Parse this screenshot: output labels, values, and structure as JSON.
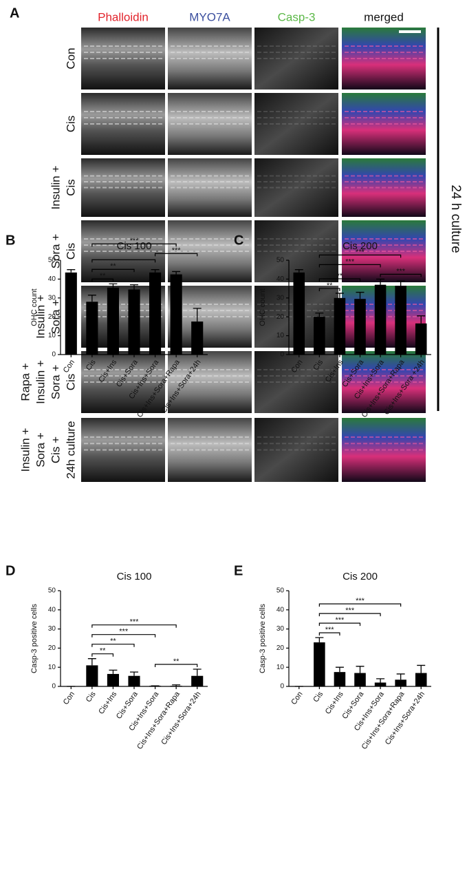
{
  "panel_a": {
    "label": "A",
    "columns": [
      {
        "name": "Phalloidin",
        "color": "#e2232b"
      },
      {
        "name": "MYO7A",
        "color": "#3b4f9e"
      },
      {
        "name": "Casp-3",
        "color": "#5bb847"
      },
      {
        "name": "merged",
        "color": "#111111"
      }
    ],
    "rows": [
      [
        "Con"
      ],
      [
        "Cis"
      ],
      [
        "Insulin +",
        "Cis"
      ],
      [
        "Sora +",
        "Cis"
      ],
      [
        "Insulin +",
        "Sora +",
        "Cis"
      ],
      [
        "Rapa +",
        "Insulin +",
        "Sora +",
        "Cis"
      ],
      [
        "Insulin +",
        "Sora +",
        "Cis +",
        "24h culture"
      ]
    ],
    "side_label": "24 h culture"
  },
  "chart_data": [
    {
      "type": "bar",
      "label": "B",
      "title": "Cis 100",
      "y_label": "OHC count",
      "categories": [
        "Con",
        "Cis",
        "Cis+Ins",
        "Cis+Sora",
        "Cis+Ins+Sora",
        "Cis+Ins+Sora+Rapa",
        "Cis+Ins+Sora+24h"
      ],
      "values": [
        43.5,
        28,
        35.5,
        34.5,
        43.5,
        42.5,
        17.5
      ],
      "errors": [
        1.5,
        3.5,
        2,
        2.5,
        1.5,
        1.5,
        7
      ],
      "color": "#000000",
      "ylim": [
        0,
        50
      ],
      "yticks": [
        0,
        10,
        20,
        30,
        40,
        50
      ],
      "brackets": [
        {
          "pair": [
            "Cis",
            "Cis+Ins"
          ],
          "label": "**"
        },
        {
          "pair": [
            "Cis",
            "Cis+Sora"
          ],
          "label": "**"
        },
        {
          "pair": [
            "Cis",
            "Cis+Ins+Sora"
          ]
        },
        {
          "pair": [
            "Cis+Ins+Sora",
            "Cis+Ins+Sora+24h"
          ],
          "label": "***"
        },
        {
          "pair": [
            "Cis",
            "Cis+Ins+Sora+Rapa"
          ],
          "label": "***"
        }
      ]
    },
    {
      "type": "bar",
      "label": "C",
      "title": "Cis 200",
      "y_label": "OHC count",
      "categories": [
        "Con",
        "Cis",
        "Cis+Ins",
        "Cis+Sora",
        "Cis+Ins+Sora",
        "Cis+Ins+Sora+Rapa",
        "Cis+Ins+Sora +24h"
      ],
      "values": [
        43.5,
        20,
        30,
        29.5,
        37,
        36.5,
        16.5
      ],
      "errors": [
        1.5,
        2,
        2.5,
        3.5,
        3,
        2.5,
        4
      ],
      "color": "#000000",
      "ylim": [
        0,
        50
      ],
      "yticks": [
        0,
        10,
        20,
        30,
        40,
        50
      ],
      "brackets": [
        {
          "pair": [
            "Cis",
            "Cis+Ins"
          ],
          "label": "**"
        },
        {
          "pair": [
            "Cis",
            "Cis+Sora"
          ],
          "label": "**"
        },
        {
          "pair": [
            "Cis+Ins+Sora",
            "Cis+Ins+Sora +24h"
          ],
          "label": "***"
        },
        {
          "pair": [
            "Cis",
            "Cis+Ins+Sora"
          ],
          "label": "***"
        },
        {
          "pair": [
            "Cis",
            "Cis+Ins+Sora+Rapa"
          ],
          "label": "***"
        }
      ]
    },
    {
      "type": "bar",
      "label": "D",
      "title": "Cis 100",
      "y_label": "Casp-3 positive cells",
      "categories": [
        "Con",
        "Cis",
        "Cis+Ins",
        "Cis+Sora",
        "Cis+Ins+Sora",
        "Cis+Ins+Sora+Rapa",
        "Cis+Ins+Sora+24h"
      ],
      "values": [
        0,
        11,
        6.5,
        5.5,
        0.3,
        0.3,
        5.5
      ],
      "errors": [
        0,
        3.5,
        2,
        2,
        0,
        0.5,
        3.5
      ],
      "color": "#000000",
      "ylim": [
        0,
        50
      ],
      "yticks": [
        0,
        10,
        20,
        30,
        40,
        50
      ],
      "brackets": [
        {
          "pair": [
            "Cis",
            "Cis+Ins"
          ],
          "label": "**"
        },
        {
          "pair": [
            "Cis",
            "Cis+Sora"
          ],
          "label": "**"
        },
        {
          "pair": [
            "Cis+Ins+Sora",
            "Cis+Ins+Sora+24h"
          ],
          "label": "**"
        },
        {
          "pair": [
            "Cis",
            "Cis+Ins+Sora"
          ],
          "label": "***"
        },
        {
          "pair": [
            "Cis",
            "Cis+Ins+Sora+Rapa"
          ],
          "label": "***"
        }
      ]
    },
    {
      "type": "bar",
      "label": "E",
      "title": "Cis 200",
      "y_label": "Casp-3 positive cells",
      "categories": [
        "Con",
        "Cis",
        "Cis+Ins",
        "Cis+Sora",
        "Cis+Ins+Sora",
        "Cis+Ins+Sora+Rapa",
        "Cis+Ins+Sora+24h"
      ],
      "values": [
        0,
        23,
        7.5,
        7,
        2,
        3.5,
        7
      ],
      "errors": [
        0,
        2.5,
        2.5,
        3.5,
        2,
        3,
        4
      ],
      "color": "#000000",
      "ylim": [
        0,
        50
      ],
      "yticks": [
        0,
        10,
        20,
        30,
        40,
        50
      ],
      "brackets": [
        {
          "pair": [
            "Cis",
            "Cis+Ins"
          ],
          "label": "***"
        },
        {
          "pair": [
            "Cis",
            "Cis+Sora"
          ],
          "label": "***"
        },
        {
          "pair": [
            "Cis",
            "Cis+Ins+Sora"
          ],
          "label": "***"
        },
        {
          "pair": [
            "Cis",
            "Cis+Ins+Sora+Rapa"
          ],
          "label": "***"
        }
      ]
    }
  ]
}
